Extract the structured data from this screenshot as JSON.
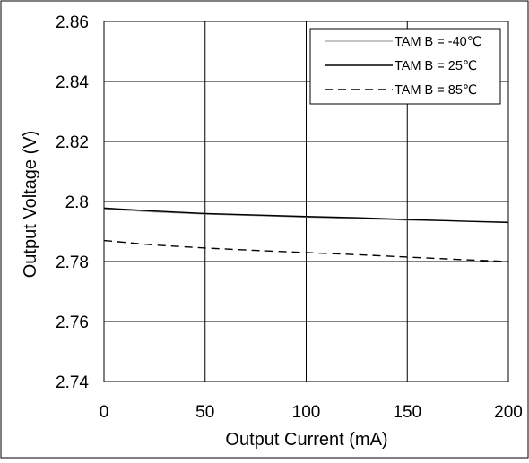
{
  "chart_data": {
    "type": "line",
    "xlabel": "Output Current (mA)",
    "ylabel": "Output Voltage (V)",
    "xlim": [
      0,
      200
    ],
    "ylim": [
      2.74,
      2.86
    ],
    "xticks": [
      "0",
      "50",
      "100",
      "150",
      "200"
    ],
    "yticks": [
      "2.74",
      "2.76",
      "2.78",
      "2.8",
      "2.82",
      "2.84",
      "2.86"
    ],
    "grid": true,
    "legend_position": "top-right",
    "x": [
      0,
      25,
      50,
      75,
      100,
      125,
      150,
      175,
      200
    ],
    "series": [
      {
        "name": "TAM B = -40℃",
        "style": "thin-solid",
        "color": "#8a8a8a",
        "values": [
          2.7975,
          2.7965,
          2.7958,
          2.7953,
          2.7948,
          2.7943,
          2.7938,
          2.7935,
          2.7932
        ]
      },
      {
        "name": "TAM B = 25℃",
        "style": "solid",
        "color": "#000000",
        "values": [
          2.7978,
          2.7968,
          2.796,
          2.7955,
          2.795,
          2.7946,
          2.794,
          2.7935,
          2.793
        ]
      },
      {
        "name": "TAM B = 85℃",
        "style": "dashed",
        "color": "#000000",
        "values": [
          2.787,
          2.7855,
          2.7845,
          2.7837,
          2.783,
          2.7823,
          2.7815,
          2.7807,
          2.78
        ]
      }
    ]
  }
}
